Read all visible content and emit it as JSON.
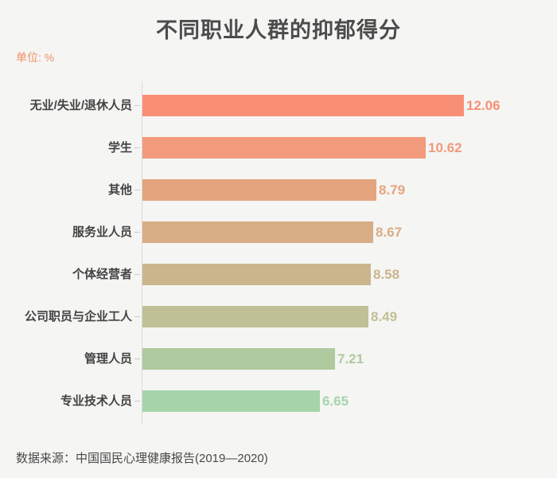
{
  "title": "不同职业人群的抑郁得分",
  "unit_label": "单位: %",
  "source": "数据来源：中国国民心理健康报告(2019—2020)",
  "colors": {
    "background": "#f5f5f3",
    "title_text": "#4c4c4c",
    "label_text": "#434343",
    "unit_text": "#ee9164",
    "axis_line": "#dadada",
    "tick": "#cccccc"
  },
  "chart_data": {
    "type": "bar",
    "orientation": "horizontal",
    "title": "不同职业人群的抑郁得分",
    "unit": "%",
    "xlabel": "",
    "ylabel": "",
    "xlim": [
      0,
      12.5
    ],
    "grid": false,
    "legend": null,
    "value_labels_shown": true,
    "categories": [
      "无业/失业/退休人员",
      "学生",
      "其他",
      "服务业人员",
      "个体经营者",
      "公司职员与企业工人",
      "管理人员",
      "专业技术人员"
    ],
    "values": [
      12.06,
      10.62,
      8.79,
      8.67,
      8.58,
      8.49,
      7.21,
      6.65
    ],
    "bar_colors": [
      "#f88f75",
      "#f19a7c",
      "#e4a47e",
      "#d7ad85",
      "#cbb58d",
      "#bfc096",
      "#afca9f",
      "#a6d4a9"
    ]
  }
}
